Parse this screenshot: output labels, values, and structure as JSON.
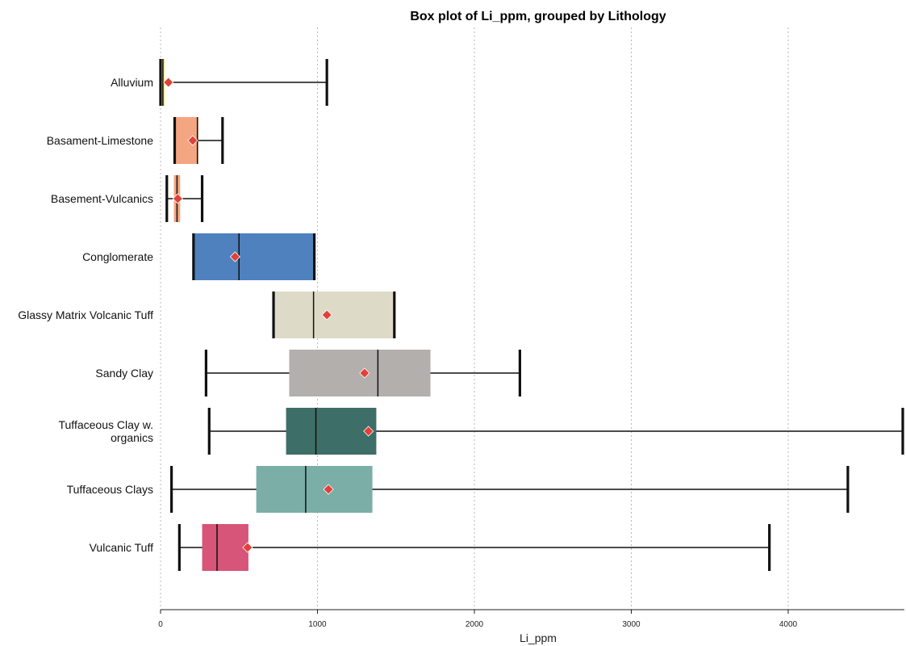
{
  "chart_data": {
    "type": "box",
    "title": "Box plot of Li_ppm, grouped by Lithology",
    "xlabel": "Li_ppm",
    "ylabel": "",
    "xlim": [
      0,
      4730
    ],
    "xticks": [
      0,
      1000,
      2000,
      3000,
      4000
    ],
    "xtick_labels": [
      "0",
      "1000",
      "2000",
      "3000",
      "4000"
    ],
    "grid": "vertical",
    "categories": [
      "Alluvium",
      "Basament-Limestone",
      "Basement-Vulcanics",
      "Conglomerate",
      "Glassy Matrix Volcanic Tuff",
      "Sandy Clay",
      "Tuffaceous Clay w. organics",
      "Tuffaceous Clays",
      "Vulcanic Tuff"
    ],
    "category_display": [
      [
        "Alluvium"
      ],
      [
        "Basament-Limestone"
      ],
      [
        "Basement-Vulcanics"
      ],
      [
        "Conglomerate"
      ],
      [
        "Glassy Matrix Volcanic Tuff"
      ],
      [
        "Sandy Clay"
      ],
      [
        "Tuffaceous Clay w.",
        "organics"
      ],
      [
        "Tuffaceous Clays"
      ],
      [
        "Vulcanic Tuff"
      ]
    ],
    "boxes": [
      {
        "name": "Alluvium",
        "whisker_low": 0,
        "q1": 5,
        "median": 15,
        "q3": 25,
        "whisker_high": 1060,
        "mean": 50,
        "color": "#f2e566"
      },
      {
        "name": "Basament-Limestone",
        "whisker_low": 90,
        "q1": 90,
        "median": 235,
        "q3": 240,
        "whisker_high": 395,
        "mean": 205,
        "color": "#f4a582"
      },
      {
        "name": "Basement-Vulcanics",
        "whisker_low": 40,
        "q1": 85,
        "median": 105,
        "q3": 125,
        "whisker_high": 265,
        "mean": 110,
        "color": "#f4a582"
      },
      {
        "name": "Conglomerate",
        "whisker_low": 210,
        "q1": 210,
        "median": 500,
        "q3": 980,
        "whisker_high": 980,
        "mean": 475,
        "color": "#4e81bd"
      },
      {
        "name": "Glassy Matrix Volcanic Tuff",
        "whisker_low": 720,
        "q1": 720,
        "median": 975,
        "q3": 1490,
        "whisker_high": 1490,
        "mean": 1060,
        "color": "#dedac8"
      },
      {
        "name": "Sandy Clay",
        "whisker_low": 290,
        "q1": 820,
        "median": 1385,
        "q3": 1720,
        "whisker_high": 2290,
        "mean": 1300,
        "color": "#b3afad"
      },
      {
        "name": "Tuffaceous Clay w. organics",
        "whisker_low": 310,
        "q1": 800,
        "median": 990,
        "q3": 1375,
        "whisker_high": 4730,
        "mean": 1325,
        "color": "#3e6e68"
      },
      {
        "name": "Tuffaceous Clays",
        "whisker_low": 70,
        "q1": 610,
        "median": 925,
        "q3": 1350,
        "whisker_high": 4380,
        "mean": 1070,
        "color": "#7aaea6"
      },
      {
        "name": "Vulcanic Tuff",
        "whisker_low": 120,
        "q1": 265,
        "median": 360,
        "q3": 560,
        "whisker_high": 3880,
        "mean": 555,
        "color": "#d65578"
      }
    ],
    "mean_marker_color": "#e0413a"
  }
}
